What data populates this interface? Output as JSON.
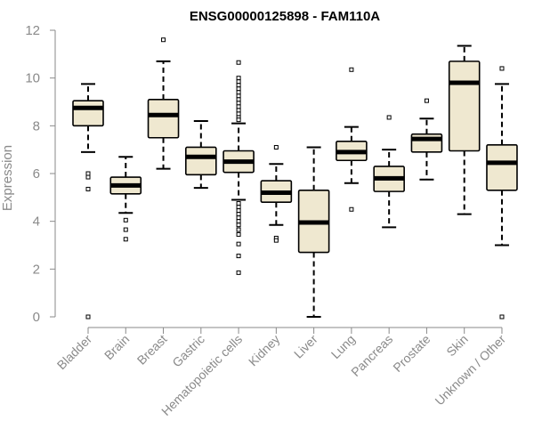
{
  "chart_data": {
    "type": "box",
    "title": "ENSG00000125898 - FAM110A",
    "xlabel": "",
    "ylabel": "Expression",
    "ylim": [
      0,
      12
    ],
    "yticks": [
      0,
      2,
      4,
      6,
      8,
      10,
      12
    ],
    "grid": false,
    "box_color": "#efe8d0",
    "categories": [
      "Bladder",
      "Brain",
      "Breast",
      "Gastric",
      "Hematopoietic cells",
      "Kidney",
      "Liver",
      "Lung",
      "Pancreas",
      "Prostate",
      "Skin",
      "Unknown / Other"
    ],
    "boxes": [
      {
        "category": "Bladder",
        "whisker_low": 6.9,
        "q1": 8.0,
        "median": 8.75,
        "q3": 9.05,
        "whisker_high": 9.75,
        "outliers": [
          6.0,
          5.85,
          5.35,
          0.0
        ]
      },
      {
        "category": "Brain",
        "whisker_low": 4.35,
        "q1": 5.15,
        "median": 5.5,
        "q3": 5.85,
        "whisker_high": 6.7,
        "outliers": [
          4.05,
          3.65,
          3.25
        ]
      },
      {
        "category": "Breast",
        "whisker_low": 6.2,
        "q1": 7.5,
        "median": 8.45,
        "q3": 9.1,
        "whisker_high": 10.7,
        "outliers": [
          11.6
        ]
      },
      {
        "category": "Gastric",
        "whisker_low": 5.4,
        "q1": 5.95,
        "median": 6.7,
        "q3": 7.1,
        "whisker_high": 8.2,
        "outliers": []
      },
      {
        "category": "Hematopoietic cells",
        "whisker_low": 4.9,
        "q1": 6.05,
        "median": 6.5,
        "q3": 6.95,
        "whisker_high": 8.1,
        "outliers": [
          10.65,
          10.0,
          9.85,
          9.7,
          9.55,
          9.4,
          9.25,
          9.1,
          8.95,
          8.8,
          8.65,
          8.5,
          8.35,
          8.25,
          4.75,
          4.6,
          4.45,
          4.3,
          4.15,
          4.0,
          3.85,
          3.65,
          3.45,
          3.05,
          2.55,
          1.85
        ]
      },
      {
        "category": "Kidney",
        "whisker_low": 3.85,
        "q1": 4.8,
        "median": 5.2,
        "q3": 5.7,
        "whisker_high": 6.4,
        "outliers": [
          7.1,
          3.3,
          3.2
        ]
      },
      {
        "category": "Liver",
        "whisker_low": 0.0,
        "q1": 2.7,
        "median": 3.95,
        "q3": 5.3,
        "whisker_high": 7.1,
        "outliers": []
      },
      {
        "category": "Lung",
        "whisker_low": 5.6,
        "q1": 6.55,
        "median": 6.9,
        "q3": 7.35,
        "whisker_high": 7.95,
        "outliers": [
          10.35,
          4.5
        ]
      },
      {
        "category": "Pancreas",
        "whisker_low": 3.75,
        "q1": 5.25,
        "median": 5.8,
        "q3": 6.3,
        "whisker_high": 7.0,
        "outliers": [
          8.35
        ]
      },
      {
        "category": "Prostate",
        "whisker_low": 5.75,
        "q1": 6.9,
        "median": 7.45,
        "q3": 7.65,
        "whisker_high": 8.3,
        "outliers": [
          9.05
        ]
      },
      {
        "category": "Skin",
        "whisker_low": 4.3,
        "q1": 6.95,
        "median": 9.8,
        "q3": 10.7,
        "whisker_high": 11.35,
        "outliers": []
      },
      {
        "category": "Unknown / Other",
        "whisker_low": 3.0,
        "q1": 5.3,
        "median": 6.45,
        "q3": 7.2,
        "whisker_high": 9.75,
        "outliers": [
          10.4,
          0.0
        ]
      }
    ]
  }
}
